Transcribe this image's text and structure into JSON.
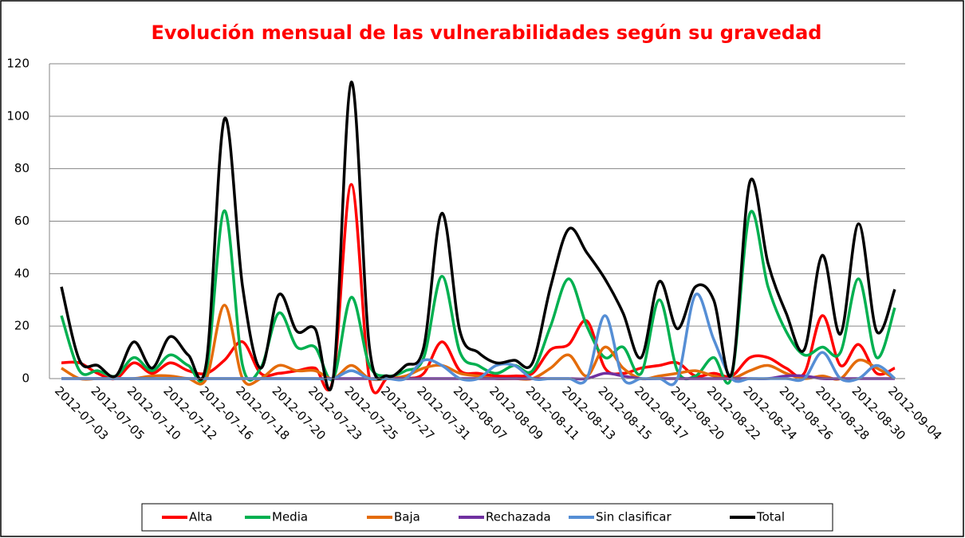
{
  "chart_data": {
    "type": "line",
    "title": "Evolución mensual de las vulnerabilidades según su gravedad",
    "categories": [
      "2012-07-03",
      null,
      "2012-07-05",
      null,
      "2012-07-10",
      null,
      "2012-07-12",
      null,
      "2012-07-16",
      null,
      "2012-07-18",
      null,
      "2012-07-20",
      null,
      "2012-07-23",
      null,
      "2012-07-25",
      null,
      "2012-07-27",
      null,
      "2012-07-31",
      null,
      "2012-08-07",
      null,
      "2012-08-09",
      null,
      "2012-08-11",
      null,
      "2012-08-13",
      null,
      "2012-08-15",
      null,
      "2012-08-17",
      null,
      "2012-08-20",
      null,
      "2012-08-22",
      null,
      "2012-08-24",
      null,
      "2012-08-26",
      null,
      "2012-08-28",
      null,
      "2012-08-30",
      null,
      "2012-09-04"
    ],
    "series": [
      {
        "name": "Alta",
        "color": "#ff0000",
        "values": [
          6,
          6,
          2,
          0,
          6,
          2,
          6,
          3,
          2,
          7,
          14,
          2,
          2,
          3,
          4,
          0,
          74,
          0,
          0,
          0,
          2,
          14,
          3,
          2,
          1,
          1,
          2,
          11,
          13,
          22,
          4,
          2,
          4,
          5,
          6,
          1,
          2,
          1,
          8,
          8,
          4,
          2,
          24,
          5,
          13,
          2,
          4
        ]
      },
      {
        "name": "Media",
        "color": "#00b050",
        "values": [
          24,
          3,
          3,
          1,
          8,
          3,
          9,
          5,
          3,
          64,
          5,
          4,
          25,
          12,
          12,
          0,
          31,
          5,
          1,
          3,
          8,
          39,
          10,
          5,
          2,
          5,
          3,
          20,
          38,
          20,
          8,
          12,
          2,
          30,
          3,
          1,
          8,
          1,
          63,
          35,
          18,
          9,
          12,
          10,
          38,
          8,
          27
        ]
      },
      {
        "name": "Baja",
        "color": "#e46c0a",
        "values": [
          4,
          0,
          0,
          0,
          0,
          1,
          1,
          0,
          0,
          28,
          0,
          0,
          5,
          3,
          3,
          0,
          5,
          0,
          0,
          1,
          4,
          5,
          2,
          1,
          0,
          0,
          0,
          4,
          9,
          1,
          12,
          4,
          0,
          1,
          2,
          3,
          1,
          0,
          3,
          5,
          2,
          0,
          1,
          0,
          7,
          4,
          0
        ]
      },
      {
        "name": "Rechazada",
        "color": "#7030a0",
        "values": [
          0,
          0,
          0,
          0,
          0,
          0,
          0,
          0,
          0,
          0,
          0,
          0,
          0,
          0,
          0,
          0,
          0,
          0,
          0,
          0,
          0,
          0,
          0,
          0,
          0,
          0,
          0,
          0,
          0,
          0,
          2,
          1,
          0,
          0,
          0,
          0,
          0,
          0,
          0,
          0,
          1,
          1,
          0,
          0,
          0,
          0,
          0
        ]
      },
      {
        "name": "Sin clasificar",
        "color": "#558ed5",
        "values": [
          0,
          0,
          0,
          0,
          0,
          0,
          0,
          0,
          0,
          0,
          0,
          0,
          0,
          0,
          0,
          0,
          3,
          0,
          0,
          0,
          7,
          5,
          0,
          0,
          5,
          5,
          0,
          0,
          0,
          0,
          24,
          0,
          0,
          0,
          0,
          32,
          15,
          0,
          0,
          0,
          0,
          0,
          10,
          0,
          0,
          5,
          0
        ]
      },
      {
        "name": "Total",
        "color": "#000000",
        "values": [
          35,
          7,
          5,
          1,
          14,
          4,
          16,
          9,
          6,
          99,
          35,
          4,
          32,
          18,
          19,
          0,
          113,
          12,
          1,
          5,
          12,
          63,
          18,
          10,
          6,
          7,
          6,
          35,
          57,
          48,
          38,
          25,
          8,
          37,
          19,
          35,
          30,
          2,
          75,
          44,
          25,
          11,
          47,
          17,
          59,
          18,
          34
        ]
      }
    ],
    "ylim": [
      0,
      120
    ],
    "yticks": [
      0,
      20,
      40,
      60,
      80,
      100,
      120
    ],
    "grid": true,
    "legend": "bottom"
  }
}
